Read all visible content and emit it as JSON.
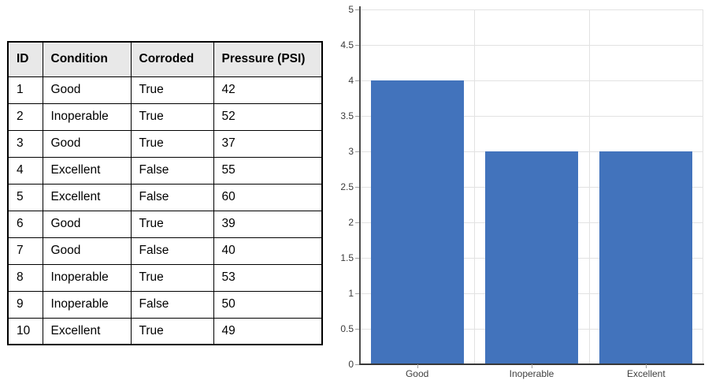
{
  "table": {
    "headers": [
      "ID",
      "Condition",
      "Corroded",
      "Pressure (PSI)"
    ],
    "rows": [
      [
        "1",
        "Good",
        "True",
        "42"
      ],
      [
        "2",
        "Inoperable",
        "True",
        "52"
      ],
      [
        "3",
        "Good",
        "True",
        "37"
      ],
      [
        "4",
        "Excellent",
        "False",
        "55"
      ],
      [
        "5",
        "Excellent",
        "False",
        "60"
      ],
      [
        "6",
        "Good",
        "True",
        "39"
      ],
      [
        "7",
        "Good",
        "False",
        "40"
      ],
      [
        "8",
        "Inoperable",
        "True",
        "53"
      ],
      [
        "9",
        "Inoperable",
        "False",
        "50"
      ],
      [
        "10",
        "Excellent",
        "True",
        "49"
      ]
    ],
    "header_bg": "#e8e8e8",
    "border_color": "#000000"
  },
  "chart_data": {
    "type": "bar",
    "categories": [
      "Good",
      "Inoperable",
      "Excellent"
    ],
    "values": [
      4,
      3,
      3
    ],
    "title": "",
    "xlabel": "",
    "ylabel": "",
    "ylim": [
      0,
      5
    ],
    "yticks": [
      0,
      0.5,
      1,
      1.5,
      2,
      2.5,
      3,
      3.5,
      4,
      4.5,
      5
    ],
    "grid": true,
    "legend_position": "none",
    "bar_color": "#4273BC",
    "gridline_color": "#e2e2e2"
  }
}
